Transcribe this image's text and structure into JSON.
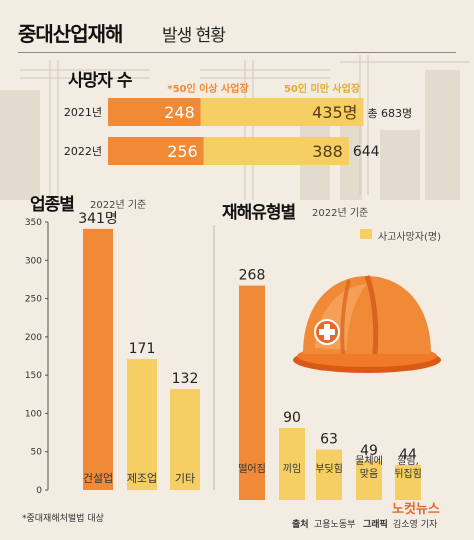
{
  "header": {
    "title": "중대산업재해",
    "subtitle": "발생 현황"
  },
  "deaths_panel": {
    "title": "사망자 수",
    "legend_large": "*50인 이상 사업장",
    "legend_small": "50인 미만 사업장",
    "total_prefix": "총",
    "unit": "명",
    "colors": {
      "large": "#f08a36",
      "small": "#f5cf63"
    }
  },
  "industry_panel": {
    "title": "업종별",
    "note": "2022년 기준"
  },
  "type_panel": {
    "title": "재해유형별",
    "note": "2022년 기준",
    "legend": "사고사망자(명)"
  },
  "footer": {
    "footnote": "*중대재해처벌법 대상",
    "source_label": "출처",
    "source": "고용노동부",
    "graphic_label": "그래픽",
    "graphic": "김소영 기자",
    "logo": "노컷뉴스"
  },
  "chart_data": [
    {
      "type": "bar",
      "orientation": "horizontal",
      "stacked": true,
      "title": "사망자 수",
      "categories": [
        "2021년",
        "2022년"
      ],
      "series": [
        {
          "name": "*50인 이상 사업장",
          "values": [
            248,
            256
          ],
          "color": "#f08a36",
          "labels": [
            "248",
            "256"
          ]
        },
        {
          "name": "50인 미만 사업장",
          "values": [
            435,
            388
          ],
          "color": "#f5cf63",
          "labels": [
            "435명",
            "388"
          ]
        }
      ],
      "totals": [
        683,
        644
      ],
      "total_labels": [
        "683명",
        "644"
      ]
    },
    {
      "type": "bar",
      "title": "업종별",
      "categories": [
        "건설업",
        "제조업",
        "기타"
      ],
      "values": [
        341,
        171,
        132
      ],
      "value_labels": [
        "341명",
        "171",
        "132"
      ],
      "ylim": [
        0,
        350
      ],
      "yticks": [
        0,
        50,
        100,
        150,
        200,
        250,
        300,
        350
      ],
      "colors": [
        "#f08a36",
        "#f5cf63",
        "#f5cf63"
      ]
    },
    {
      "type": "bar",
      "title": "재해유형별",
      "categories": [
        "떨어짐",
        "끼임",
        "부딪힘",
        "물체에 맞음",
        "깔림, 뒤집힘"
      ],
      "category_lines": [
        [
          "떨어짐"
        ],
        [
          "끼임"
        ],
        [
          "부딪힘"
        ],
        [
          "물체에",
          "맞음"
        ],
        [
          "깔림,",
          "뒤집힘"
        ]
      ],
      "values": [
        268,
        90,
        63,
        49,
        44
      ],
      "legend": "사고사망자(명)",
      "colors": [
        "#f08a36",
        "#f5cf63",
        "#f5cf63",
        "#f5cf63",
        "#f5cf63"
      ]
    }
  ]
}
